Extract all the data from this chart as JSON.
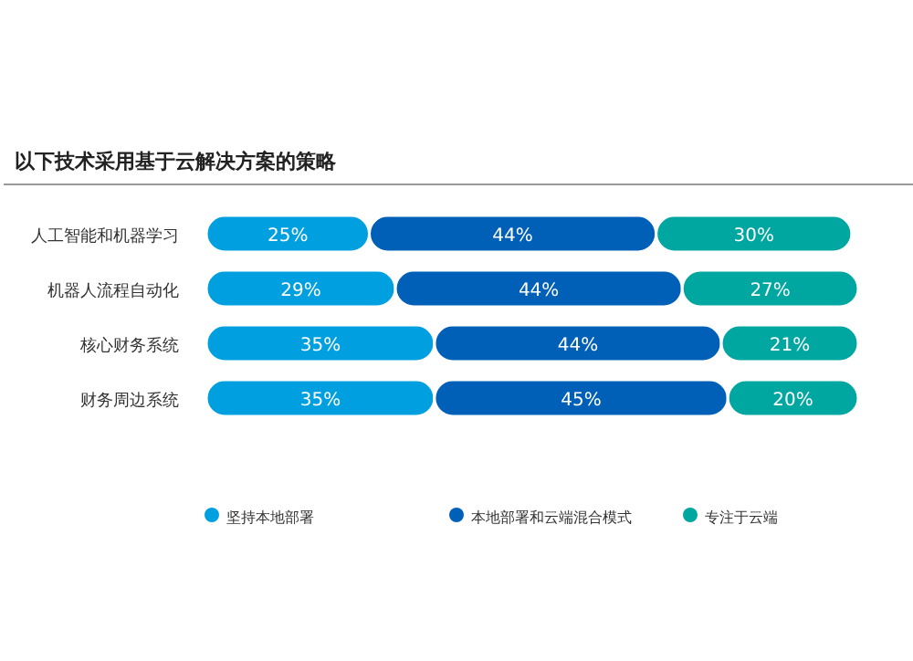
{
  "chart_data": {
    "type": "bar",
    "orientation": "horizontal",
    "stacked": true,
    "title": "以下技术采用基于云解决方案的策略",
    "categories": [
      "人工智能和机器学习",
      "机器人流程自动化",
      "核心财务系统",
      "财务周边系统"
    ],
    "legend": "bottom",
    "series": [
      {
        "name": "坚持本地部署",
        "color": "#00a0e0",
        "values": [
          25,
          29,
          35,
          35
        ],
        "value_labels": [
          "25%",
          "29%",
          "35%",
          "35%"
        ]
      },
      {
        "name": "本地部署和云端混合模式",
        "color": "#0060b8",
        "values": [
          44,
          44,
          44,
          45
        ],
        "value_labels": [
          "44%",
          "44%",
          "44%",
          "45%"
        ]
      },
      {
        "name": "专注于云端",
        "color": "#00a6a0",
        "values": [
          30,
          27,
          21,
          20
        ],
        "value_labels": [
          "30%",
          "27%",
          "21%",
          "20%"
        ]
      }
    ]
  }
}
